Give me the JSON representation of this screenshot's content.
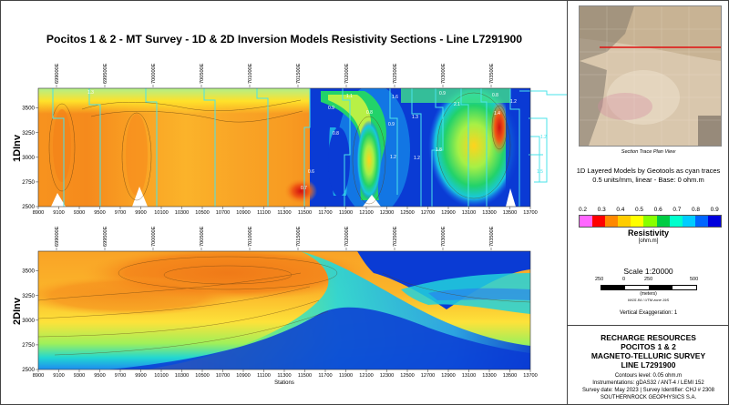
{
  "title": "Pocitos 1 & 2 - MT Survey - 1D & 2D Inversion Models Resistivity Sections - Line L7291900",
  "chart_data": [
    {
      "type": "heatmap",
      "panel": "1DInv",
      "ylabel": "1DInv",
      "xlim": [
        8900,
        13700
      ],
      "ylim": [
        2500,
        3700
      ],
      "x_ticks": [
        "8900",
        "9100",
        "9300",
        "9500",
        "9700",
        "9900",
        "10100",
        "10300",
        "10500",
        "10700",
        "10900",
        "11100",
        "11300",
        "11500",
        "11700",
        "11900",
        "12100",
        "12300",
        "12500",
        "12700",
        "12900",
        "13100",
        "13300",
        "13500",
        "13700"
      ],
      "y_ticks": [
        "2500",
        "2750",
        "3000",
        "3250",
        "3500"
      ],
      "station_labels": [
        "699000E",
        "699500E",
        "700000E",
        "700500E",
        "701000E",
        "701500E",
        "702000E",
        "702500E",
        "703000E",
        "703500E"
      ],
      "trace_labels": [
        "1.3",
        "1.1",
        "0.9",
        "0.8",
        "0.6",
        "0.8",
        "0.9",
        "1.3",
        "1.2",
        "0.9",
        "1.6",
        "1.2",
        "1.8",
        "0.8",
        "0.7",
        "2.1",
        "1.4",
        "1.2"
      ],
      "colorscale_min": 0.2,
      "colorscale_max": 0.9
    },
    {
      "type": "heatmap",
      "panel": "2DInv",
      "ylabel": "2DInv",
      "xlabel": "Stations",
      "xlim": [
        8900,
        13700
      ],
      "ylim": [
        2500,
        3700
      ],
      "x_ticks": [
        "8900",
        "9100",
        "9300",
        "9500",
        "9700",
        "9900",
        "10100",
        "10300",
        "10500",
        "10700",
        "10900",
        "11100",
        "11300",
        "11500",
        "11700",
        "11900",
        "12100",
        "12300",
        "12500",
        "12700",
        "12900",
        "13100",
        "13300",
        "13500",
        "13700"
      ],
      "y_ticks": [
        "2500",
        "2750",
        "3000",
        "3250",
        "3500"
      ],
      "station_labels": [
        "699000E",
        "699500E",
        "700000E",
        "700500E",
        "701000E",
        "701500E",
        "702000E",
        "702500E",
        "703000E",
        "703500E"
      ],
      "colorscale_min": 0.2,
      "colorscale_max": 0.9
    }
  ],
  "right_panel": {
    "map_caption": "Section Trace Plan View",
    "model_note_1": "1D Layered Models by Geotools as cyan traces",
    "model_note_2": "0.5 units/mm, linear - Base: 0 ohm.m",
    "colorbar_labels": [
      "0.2",
      "0.3",
      "0.4",
      "0.5",
      "0.6",
      "0.7",
      "0.8",
      "0.9"
    ],
    "colorbar_colors": [
      "#ff66ff",
      "#ff0000",
      "#ff8800",
      "#ffcc00",
      "#ffff00",
      "#88ff00",
      "#00cc44",
      "#00ffcc",
      "#00ccff",
      "#0066ff",
      "#0000dd"
    ],
    "colorbar_title": "Resistivity",
    "colorbar_units": "[ohm.m]",
    "scale_title": "Scale 1:20000",
    "scale_ticks": [
      "250",
      "0",
      "250",
      "500"
    ],
    "scale_units": "(meters)",
    "projection": "WGS 84 / UTM zone 19S",
    "vertical_exaggeration": "Vertical Exaggeration: 1",
    "company": "RECHARGE RESOURCES",
    "project": "POCITOS 1 & 2",
    "survey_type": "MAGNETO-TELLURIC SURVEY",
    "line": "LINE L7291900",
    "contours": "Contours level: 0.05 ohm.m",
    "instrumentation": "Instrumentations: gDAS32 / ANT-4 / LEMI 152",
    "survey_date": "Survey date: May 2023 | Survey Identifier: CHJ # 2308",
    "contractor": "SOUTHERNROCK GEOPHYSICS S.A."
  }
}
